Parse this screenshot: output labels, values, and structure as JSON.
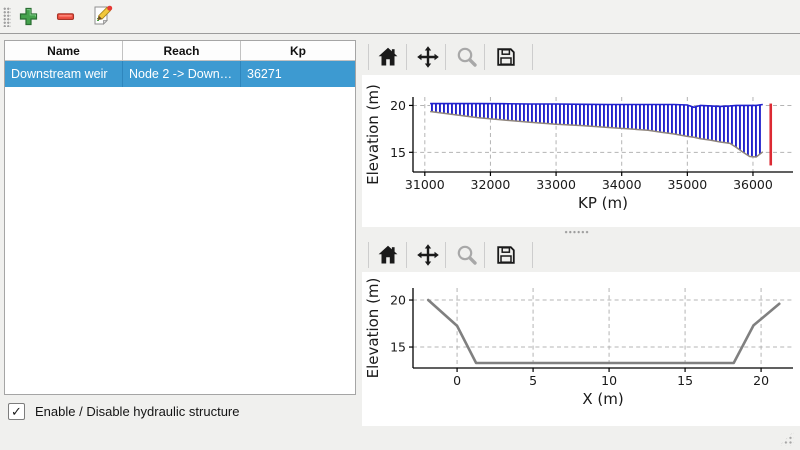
{
  "main_toolbar": {
    "buttons": [
      {
        "name": "add",
        "icon": "plus-icon"
      },
      {
        "name": "remove",
        "icon": "minus-icon"
      },
      {
        "name": "edit",
        "icon": "edit-document-icon"
      }
    ]
  },
  "structure_table": {
    "columns": [
      "Name",
      "Reach",
      "Kp"
    ],
    "rows": [
      {
        "name": "Downstream weir",
        "reach": "Node 2 -> Down…",
        "kp": "36271"
      }
    ],
    "selection_color": "#3d9ad1"
  },
  "enable_checkbox": {
    "label": "Enable / Disable hydraulic structure",
    "checked": true,
    "mark": "✓"
  },
  "plot_toolbar": {
    "icons": [
      "home-icon",
      "pan-arrows-icon",
      "zoom-magnifier-icon",
      "save-floppy-icon"
    ]
  },
  "colors": {
    "hatch_blue": "#2222cc",
    "bed_line": "#8f857c",
    "weir_marker_red": "#dc2a33",
    "cross_section_gray": "#808080",
    "grid": "#b4b4b4"
  },
  "chart_data": [
    {
      "type": "area",
      "title": "",
      "xlabel": "KP (m)",
      "ylabel": "Elevation (m)",
      "xlim": [
        30820,
        36610
      ],
      "ylim": [
        12.9,
        20.9
      ],
      "xticks": [
        31000,
        32000,
        33000,
        34000,
        35000,
        36000
      ],
      "yticks": [
        15,
        20
      ],
      "grid": true,
      "legend": "none",
      "series": [
        {
          "name": "river-sections-band",
          "style": "vhatch-band",
          "color": "#2222cc",
          "bottom_color": "#8f857c",
          "x": [
            31080,
            31400,
            31800,
            32200,
            32600,
            33000,
            33400,
            33800,
            34200,
            34400,
            34600,
            34800,
            35000,
            35100,
            35200,
            35350,
            35500,
            35650,
            35750,
            35850,
            35950,
            36050,
            36150
          ],
          "top": [
            20.2,
            20.2,
            20.2,
            20.18,
            20.15,
            20.15,
            20.12,
            20.1,
            20.1,
            20.1,
            20.1,
            20.1,
            20.05,
            19.8,
            20.0,
            19.95,
            19.9,
            19.95,
            20.0,
            20.0,
            20.0,
            20.0,
            20.1
          ],
          "bottom": [
            19.35,
            19.05,
            18.7,
            18.45,
            18.2,
            18.0,
            17.85,
            17.65,
            17.45,
            17.35,
            17.15,
            16.95,
            16.7,
            16.6,
            16.45,
            16.3,
            16.1,
            15.95,
            15.5,
            15.0,
            14.55,
            14.5,
            15.05
          ]
        },
        {
          "name": "weir-location-marker",
          "style": "vline",
          "color": "#dc2a33",
          "x": 36271,
          "y0": 13.6,
          "y1": 20.2
        }
      ]
    },
    {
      "type": "line",
      "title": "",
      "xlabel": "X (m)",
      "ylabel": "Elevation (m)",
      "xlim": [
        -2.9,
        22.1
      ],
      "ylim": [
        12.77,
        21.28
      ],
      "xticks": [
        0,
        5,
        10,
        15,
        20
      ],
      "yticks": [
        15,
        20
      ],
      "grid": true,
      "legend": "none",
      "series": [
        {
          "name": "cross-section-profile",
          "style": "line",
          "color": "#808080",
          "width": 2.6,
          "x": [
            -1.9,
            0.0,
            1.25,
            18.2,
            19.5,
            21.2
          ],
          "y": [
            20.0,
            17.25,
            13.3,
            13.3,
            17.3,
            19.6
          ]
        }
      ]
    }
  ]
}
